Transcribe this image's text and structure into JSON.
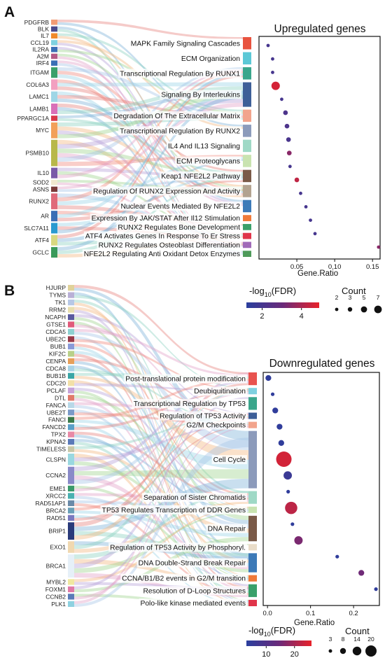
{
  "colors": {
    "dot_low": "#2a3f9e",
    "dot_high": "#e8222a",
    "flow": [
      "#e8837f",
      "#7fb2d8",
      "#8cd1c0",
      "#f2b880",
      "#b7a3d9",
      "#9fd38f",
      "#e3a2c8",
      "#a8c6e8",
      "#f08a7e",
      "#9ad4e6"
    ]
  },
  "chart_data": [
    {
      "panel": "A",
      "type": "sankey-dotplot",
      "title": "Upregulated genes",
      "xlabel": "Gene.Ratio",
      "xlim": [
        0,
        0.16
      ],
      "xticks": [
        "0.05",
        "0.10",
        "0.15"
      ],
      "xtick_values": [
        0.05,
        0.1,
        0.15
      ],
      "genes": [
        "PDGFRB",
        "BLK",
        "IL7",
        "CCL19",
        "IL2RA",
        "A2M",
        "IRF4",
        "ITGAM",
        "COL6A3",
        "LAMC1",
        "LAMB1",
        "PPARGC1A",
        "MYC",
        "PSMB10",
        "IL10",
        "SOD2",
        "ASNS",
        "RUNX2",
        "AR",
        "SLC7A11",
        "ATF4",
        "GCLC"
      ],
      "gene_colors": [
        "#f29c75",
        "#4a4a8c",
        "#f08a2a",
        "#7fd1e0",
        "#3a6eb5",
        "#b35a86",
        "#3a6eb5",
        "#3aa06a",
        "#f2a0c0",
        "#9ed6e6",
        "#d970b8",
        "#d9384a",
        "#f2a05a",
        "#b8b84a",
        "#7a5aa8",
        "#f0e8d0",
        "#7a3a3a",
        "#e06a7a",
        "#3a6eb5",
        "#2a9ad0",
        "#d8d880",
        "#3a9a5a"
      ],
      "gene_weights": [
        1,
        1,
        1,
        1,
        1,
        1,
        1,
        2,
        2,
        2,
        2,
        1,
        3,
        5,
        2,
        1,
        1,
        3,
        2,
        2,
        2,
        2
      ],
      "pathways": [
        "MAPK Family Signaling Cascades",
        "ECM Organization",
        "Transcriptional Regulation By RUNX1",
        "Signaling By Interleukins",
        "Degradation Of The Extracellular Matrix",
        "Transcriptional Regulation By RUNX2",
        "IL4 And IL13 Signaling",
        "ECM Proteoglycans",
        "Keap1 NFE2L2 Pathway",
        "Regulation Of RUNX2 Expression And Activity",
        "Nuclear Events Mediated By NFE2L2",
        "Expression By JAK/STAT After Il12 Stimulation",
        "RUNX2 Regulates Bone Development",
        "ATF4 Activates Genes In Response To Er Stress",
        "RUNX2 Regulates Osteoblast Differentiation",
        "NFE2L2 Regulating Anti Oxidant Detox Enzymes"
      ],
      "pathway_colors": [
        "#e8533f",
        "#5bc8d6",
        "#3aa68c",
        "#3e5f98",
        "#f2a48c",
        "#8c9bbb",
        "#9fd9c6",
        "#c9e3b0",
        "#7a5a48",
        "#b3a390",
        "#3d7ab8",
        "#f07a3a",
        "#3aa06a",
        "#e0344a",
        "#a06ab8",
        "#4e9a5a"
      ],
      "pathway_weights": [
        2,
        2,
        2,
        4,
        2,
        2,
        2,
        2,
        2,
        2,
        2,
        1,
        1,
        1,
        1,
        1
      ],
      "gene_ratio": [
        0.012,
        0.018,
        0.018,
        0.022,
        0.03,
        0.035,
        0.037,
        0.039,
        0.04,
        0.041,
        0.05,
        0.055,
        0.062,
        0.068,
        0.074,
        0.158
      ],
      "count": [
        2,
        2,
        2,
        7,
        2,
        3,
        3,
        3,
        3,
        2,
        3,
        2,
        2,
        2,
        2,
        2
      ],
      "neg_log10_fdr": [
        2.0,
        2.0,
        2.0,
        4.6,
        2.0,
        2.2,
        2.2,
        2.1,
        3.5,
        2.0,
        4.3,
        2.0,
        2.0,
        2.0,
        2.0,
        3.5
      ]
    },
    {
      "panel": "B",
      "type": "sankey-dotplot",
      "title": "Downregulated genes",
      "xlabel": "Gene.Ratio",
      "xlim": [
        -0.01,
        0.26
      ],
      "xticks": [
        "0.0",
        "0.1",
        "0.2"
      ],
      "xtick_values": [
        0.0,
        0.1,
        0.2
      ],
      "genes": [
        "HJURP",
        "TYMS",
        "TK1",
        "RRM2",
        "NCAPH",
        "GTSE1",
        "CDCA5",
        "UBE2C",
        "BUB1",
        "KIF2C",
        "CENPA",
        "CDCA8",
        "BUB1B",
        "CDC20",
        "PCLAF",
        "DTL",
        "FANCA",
        "UBE2T",
        "FANCI",
        "FANCD2",
        "TPX2",
        "KPNA2",
        "TIMELESS",
        "CLSPN",
        "CCNA2",
        "EME1",
        "XRCC2",
        "RAD51AP1",
        "BRCA2",
        "RAD51",
        "BRIP1",
        "EXO1",
        "BRCA1",
        "MYBL2",
        "FOXM1",
        "CCNB2",
        "PLK1"
      ],
      "gene_colors": [
        "#e0d29a",
        "#b9b0d6",
        "#b7c8e6",
        "#e8dfb0",
        "#5a5aa0",
        "#e05a7a",
        "#8ed1d1",
        "#9a3a4a",
        "#8a9ad8",
        "#b9d089",
        "#e6a05a",
        "#a8d3e6",
        "#3aa6a6",
        "#f2e0a8",
        "#c7a3d8",
        "#e07a6a",
        "#b8d8e8",
        "#7a9ac8",
        "#3a7a4a",
        "#5aa0c8",
        "#e88aa6",
        "#5a7ab8",
        "#c8c8a8",
        "#9ad8e0",
        "#8a8ac8",
        "#3a9a6a",
        "#4ab0b0",
        "#6a8aa8",
        "#6aa0b8",
        "#7a7ac0",
        "#2a3a7a",
        "#f0d8b0",
        "#e6f0f8",
        "#f0e8a0",
        "#e07aa8",
        "#5a7ab8",
        "#8ed1e0"
      ],
      "gene_weights": [
        1,
        1,
        1,
        1,
        1,
        1,
        1,
        1,
        1,
        1,
        1,
        1,
        1,
        1,
        1,
        1,
        1,
        1,
        1,
        1,
        1,
        1,
        1,
        2,
        3,
        1,
        1,
        1,
        1,
        1,
        3,
        2,
        4,
        1,
        1,
        1,
        1
      ],
      "pathways": [
        "Post-translational protein modification",
        "Deubiquitination",
        "Transcriptional Regulation by TP53",
        "Regulation of TP53 Activity",
        "G2/M Checkpoints",
        "Cell Cycle",
        "Separation of Sister Chromatids",
        "TP53 Regulates Transcription of DDR Genes",
        "DNA Repair",
        "Regulation of TP53 Activity by Phosphoryl.",
        "DNA Double-Strand Break Repair",
        "CCNA/B1/B2 events in G2/M transition",
        "Resolution of D-Loop Structures",
        "Polo-like kinase mediated events"
      ],
      "pathway_colors": [
        "#e8534f",
        "#7fd1e0",
        "#3aa68c",
        "#3d5f98",
        "#f2a48c",
        "#8c9bbb",
        "#9fd9c6",
        "#c9e3b0",
        "#7a5a48",
        "#e9dcc8",
        "#3d7ab8",
        "#f07a3a",
        "#3aa06a",
        "#e0344a"
      ],
      "pathway_weights": [
        2,
        1,
        2,
        1,
        1,
        9,
        2,
        1,
        4,
        1,
        3,
        1,
        2,
        1
      ],
      "gene_ratio": [
        0.002,
        0.012,
        0.018,
        0.028,
        0.032,
        0.038,
        0.047,
        0.048,
        0.055,
        0.058,
        0.072,
        0.162,
        0.218,
        0.252
      ],
      "count": [
        5,
        3,
        5,
        5,
        5,
        20,
        8,
        3,
        14,
        3,
        8,
        3,
        5,
        3
      ],
      "neg_log10_fdr": [
        4,
        4,
        4,
        4,
        4,
        24,
        6,
        4,
        22,
        4,
        16,
        4,
        15,
        4
      ]
    }
  ],
  "legends": {
    "fdr_A": {
      "label_main": "-log",
      "label_sub": "10",
      "label_tail": "(FDR)",
      "ticks": [
        "2",
        "4"
      ],
      "tick_values": [
        2,
        4
      ],
      "range": [
        1.2,
        4.9
      ]
    },
    "count_A": {
      "title": "Count",
      "labels": [
        "2",
        "3",
        "5",
        "7"
      ],
      "values": [
        2,
        3,
        5,
        7
      ]
    },
    "fdr_B": {
      "label_main": "-log",
      "label_sub": "10",
      "label_tail": "(FDR)",
      "ticks": [
        "10",
        "20"
      ],
      "tick_values": [
        10,
        20
      ],
      "range": [
        3,
        26
      ]
    },
    "count_B": {
      "title": "Count",
      "labels": [
        "3",
        "8",
        "14",
        "20"
      ],
      "values": [
        3,
        8,
        14,
        20
      ]
    }
  }
}
